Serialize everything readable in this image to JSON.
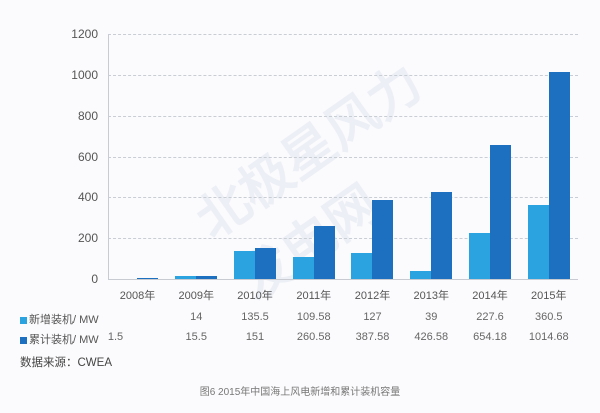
{
  "chart_data": {
    "type": "bar",
    "title": "图6 2015年中国海上风电新增和累计装机容量",
    "xlabel": "",
    "ylabel": "",
    "ylim": [
      0,
      1200
    ],
    "yticks": [
      "0",
      "200",
      "400",
      "600",
      "800",
      "1000",
      "1200"
    ],
    "grid": true,
    "categories": [
      "2008年",
      "2009年",
      "2010年",
      "2011年",
      "2012年",
      "2013年",
      "2014年",
      "2015年"
    ],
    "series": [
      {
        "name": "新增装机/ MW",
        "color": "#2ba3e0",
        "values": [
          null,
          14,
          135.5,
          109.58,
          127,
          39,
          227.6,
          360.5
        ],
        "labels": [
          "",
          "14",
          "135.5",
          "109.58",
          "127",
          "39",
          "227.6",
          "360.5"
        ]
      },
      {
        "name": "累计装机/ MW",
        "color": "#1d6fbf",
        "values": [
          1.5,
          15.5,
          151,
          260.58,
          387.58,
          426.58,
          654.18,
          1014.68
        ],
        "labels": [
          "1.5",
          "15.5",
          "151",
          "260.58",
          "387.58",
          "426.58",
          "654.18",
          "1014.68"
        ]
      }
    ],
    "legend_position": "table-below"
  },
  "source": "数据来源：CWEA",
  "caption": "图6 2015年中国海上风电新增和累计装机容量",
  "watermark": "北极星风力发电网"
}
